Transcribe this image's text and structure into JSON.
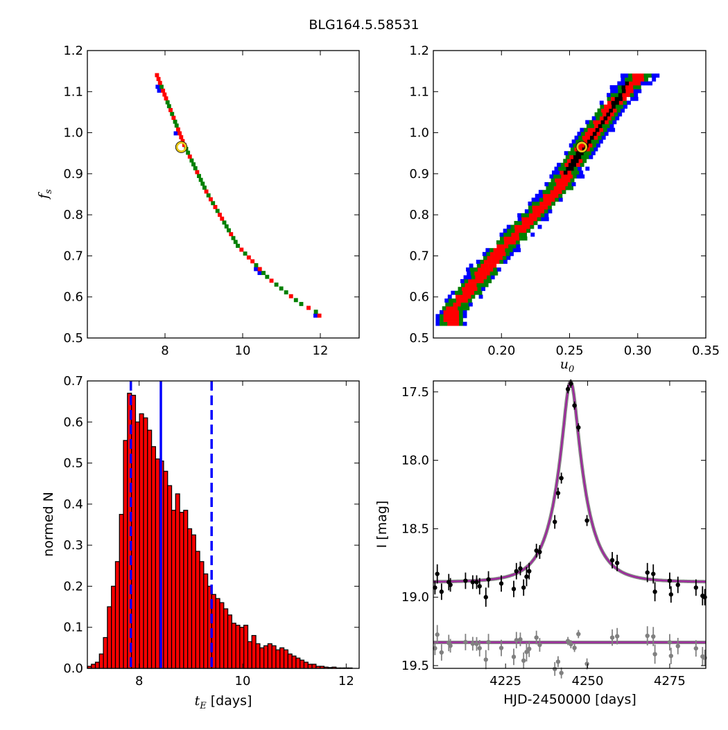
{
  "figure": {
    "title": "BLG164.5.58531"
  },
  "chart_data": [
    {
      "id": "tE-vs-fs",
      "type": "heatmap",
      "xlabel": "",
      "ylabel": "f_s",
      "xlim": [
        6.0,
        13.0
      ],
      "ylim": [
        0.5,
        1.2
      ],
      "xticks": [
        8,
        10,
        12
      ],
      "yticks": [
        0.5,
        0.6,
        0.7,
        0.8,
        0.9,
        1.0,
        1.1,
        1.2
      ],
      "colors": {
        "outer": "#0000ff",
        "mid": "#008000",
        "inner": "#ff0000",
        "core": "#000000",
        "marker": "#e6c619"
      },
      "band": {
        "centerline": [
          [
            7.7,
            1.14
          ],
          [
            8.4,
            0.97
          ],
          [
            9.0,
            0.85
          ],
          [
            9.8,
            0.72
          ],
          [
            10.6,
            0.64
          ],
          [
            11.4,
            0.58
          ],
          [
            11.9,
            0.555
          ]
        ],
        "halfwidth_outer": 0.062,
        "halfwidth_mid": 0.048,
        "halfwidth_inner": 0.024,
        "halfwidth_core": 0.009,
        "core_centerline": [
          [
            7.8,
            1.13
          ],
          [
            8.1,
            1.06
          ],
          [
            8.35,
            1.0
          ],
          [
            8.6,
            0.95
          ]
        ],
        "y_range": [
          0.55,
          1.14
        ]
      },
      "best_fit": {
        "x": 8.42,
        "y": 0.965
      }
    },
    {
      "id": "u0-vs-fs",
      "type": "heatmap",
      "xlabel": "u_0",
      "ylabel": "",
      "xlim": [
        0.15,
        0.35
      ],
      "ylim": [
        0.5,
        1.2
      ],
      "xticks": [
        0.2,
        0.25,
        0.3,
        0.35
      ],
      "xtick_labels": [
        "0.20",
        "0.25",
        "0.30",
        "0.35"
      ],
      "yticks": [
        0.5,
        0.6,
        0.7,
        0.8,
        0.9,
        1.0,
        1.1,
        1.2
      ],
      "colors": {
        "outer": "#0000ff",
        "mid": "#008000",
        "inner": "#ff0000",
        "core": "#000000",
        "marker": "#e6c619"
      },
      "band": {
        "centerline": [
          [
            0.162,
            0.56
          ],
          [
            0.2,
            0.715
          ],
          [
            0.24,
            0.86
          ],
          [
            0.26,
            0.965
          ],
          [
            0.28,
            1.06
          ],
          [
            0.302,
            1.14
          ]
        ],
        "halfwidth_outer": 0.0105,
        "halfwidth_mid": 0.0085,
        "halfwidth_inner": 0.005,
        "halfwidth_core": 0.0018,
        "core_centerline": [
          [
            0.245,
            0.89
          ],
          [
            0.26,
            0.96
          ],
          [
            0.275,
            1.03
          ],
          [
            0.292,
            1.12
          ]
        ],
        "y_range": [
          0.53,
          1.14
        ]
      },
      "best_fit": {
        "x": 0.259,
        "y": 0.965
      }
    },
    {
      "id": "tE-histogram",
      "type": "bar",
      "xlabel": "t_E  [days]",
      "ylabel": "normed N",
      "xlim": [
        7.0,
        12.25
      ],
      "ylim": [
        0.0,
        0.7
      ],
      "xticks": [
        8,
        10,
        12
      ],
      "yticks": [
        0.0,
        0.1,
        0.2,
        0.3,
        0.4,
        0.5,
        0.6,
        0.7
      ],
      "bin_start": 7.0,
      "bin_width": 0.0775,
      "values": [
        0.005,
        0.01,
        0.015,
        0.035,
        0.075,
        0.15,
        0.2,
        0.26,
        0.375,
        0.555,
        0.67,
        0.665,
        0.6,
        0.62,
        0.61,
        0.58,
        0.54,
        0.51,
        0.505,
        0.48,
        0.445,
        0.385,
        0.425,
        0.38,
        0.385,
        0.34,
        0.325,
        0.285,
        0.26,
        0.23,
        0.2,
        0.18,
        0.17,
        0.16,
        0.145,
        0.13,
        0.11,
        0.105,
        0.1,
        0.105,
        0.065,
        0.08,
        0.06,
        0.05,
        0.055,
        0.06,
        0.055,
        0.045,
        0.05,
        0.045,
        0.035,
        0.03,
        0.025,
        0.02,
        0.015,
        0.01,
        0.01,
        0.005,
        0.005,
        0.003,
        0.002,
        0.003,
        0.001,
        0.001,
        0.001,
        0.001,
        0.0
      ],
      "bar_color": "#ff0000",
      "lines": [
        {
          "x": 8.42,
          "style": "solid",
          "color": "#0000ff"
        },
        {
          "x": 7.84,
          "style": "dashed",
          "color": "#0000ff"
        },
        {
          "x": 9.4,
          "style": "dashed",
          "color": "#0000ff"
        }
      ]
    },
    {
      "id": "light-curve",
      "type": "scatter",
      "xlabel": "HJD-2450000 [days]",
      "ylabel": "I [mag]",
      "xlim": [
        4203,
        4286
      ],
      "ylim": [
        19.52,
        17.42
      ],
      "xticks": [
        4225,
        4250,
        4275
      ],
      "yticks": [
        17.5,
        18.0,
        18.5,
        19.0,
        19.5
      ],
      "ytick_labels": [
        "17.5",
        "18.0",
        "18.5",
        "19.0",
        "19.5"
      ],
      "model": {
        "t0": 4244.8,
        "tE": 8.42,
        "u0": 0.259,
        "fs": 0.965,
        "I_base": 18.89,
        "color": "#a0209f"
      },
      "residual_baseline": 19.33,
      "data_points": [
        [
          4203.5,
          18.93,
          0.05
        ],
        [
          4204.2,
          18.83,
          0.07
        ],
        [
          4205.5,
          18.96,
          0.06
        ],
        [
          4207.7,
          18.89,
          0.06
        ],
        [
          4208.2,
          18.91,
          0.05
        ],
        [
          4212.8,
          18.88,
          0.06
        ],
        [
          4215.0,
          18.89,
          0.05
        ],
        [
          4216.2,
          18.89,
          0.05
        ],
        [
          4217.1,
          18.92,
          0.06
        ],
        [
          4219.0,
          19.0,
          0.07
        ],
        [
          4219.8,
          18.87,
          0.06
        ],
        [
          4223.7,
          18.9,
          0.06
        ],
        [
          4227.5,
          18.94,
          0.06
        ],
        [
          4228.3,
          18.81,
          0.06
        ],
        [
          4229.5,
          18.79,
          0.05
        ],
        [
          4230.5,
          18.93,
          0.06
        ],
        [
          4231.4,
          18.85,
          0.07
        ],
        [
          4232.2,
          18.81,
          0.06
        ],
        [
          4234.4,
          18.66,
          0.05
        ],
        [
          4235.4,
          18.67,
          0.05
        ],
        [
          4240.0,
          18.45,
          0.05
        ],
        [
          4241.0,
          18.24,
          0.04
        ],
        [
          4242.0,
          18.13,
          0.04
        ],
        [
          4244.0,
          17.48,
          0.03
        ],
        [
          4244.9,
          17.44,
          0.03
        ],
        [
          4246.0,
          17.6,
          0.03
        ],
        [
          4247.2,
          17.76,
          0.03
        ],
        [
          4249.8,
          18.44,
          0.04
        ],
        [
          4257.5,
          18.73,
          0.06
        ],
        [
          4259.0,
          18.75,
          0.06
        ],
        [
          4268.2,
          18.82,
          0.07
        ],
        [
          4270.0,
          18.83,
          0.07
        ],
        [
          4270.5,
          18.96,
          0.07
        ],
        [
          4275.0,
          18.88,
          0.06
        ],
        [
          4275.4,
          18.98,
          0.06
        ],
        [
          4277.5,
          18.91,
          0.06
        ],
        [
          4283.0,
          18.93,
          0.06
        ],
        [
          4285.0,
          18.99,
          0.07
        ],
        [
          4285.7,
          19.0,
          0.06
        ]
      ],
      "data_color": "#000000",
      "residual_color": "#808080"
    }
  ]
}
